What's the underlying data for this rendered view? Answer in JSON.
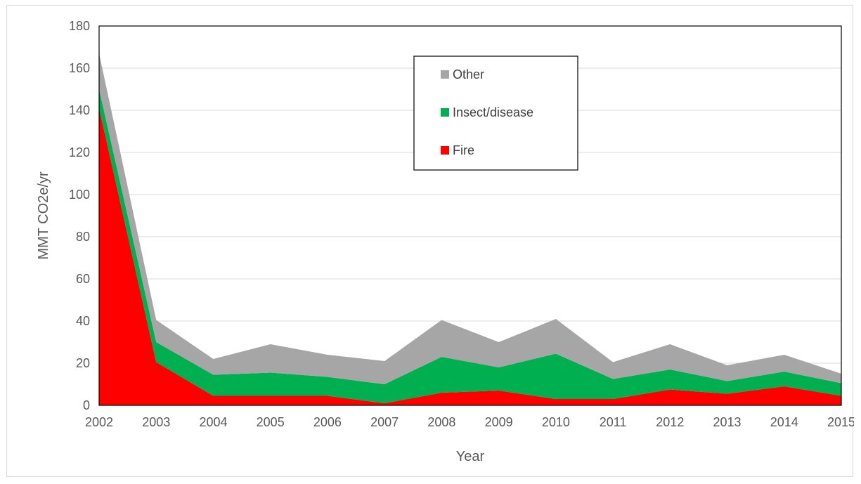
{
  "chart_data": {
    "type": "area",
    "stacked": true,
    "x": [
      2002,
      2003,
      2004,
      2005,
      2006,
      2007,
      2008,
      2009,
      2010,
      2011,
      2012,
      2013,
      2014,
      2015
    ],
    "series": [
      {
        "name": "Fire",
        "color": "#ff0000",
        "values": [
          141,
          20.5,
          4.5,
          4.5,
          4.5,
          1,
          6,
          7,
          3,
          3,
          7.5,
          5.5,
          9,
          4.5
        ]
      },
      {
        "name": "Insect/disease",
        "color": "#00b050",
        "values": [
          9,
          9.5,
          10,
          11,
          9,
          9,
          17,
          11,
          21.5,
          9.5,
          9.5,
          6,
          7,
          6
        ]
      },
      {
        "name": "Other",
        "color": "#a6a6a6",
        "values": [
          17,
          10.5,
          7.5,
          13.5,
          10.5,
          11,
          17.5,
          12,
          16.5,
          8,
          12,
          7.5,
          8,
          4.5
        ]
      }
    ],
    "xlabel": "Year",
    "ylabel": "MMT CO2e/yr",
    "ylim": [
      0,
      180
    ],
    "yticks": [
      0,
      20,
      40,
      60,
      80,
      100,
      120,
      140,
      160,
      180
    ],
    "grid": "horizontal",
    "legend_position": "top-center",
    "legend_order": [
      "Other",
      "Insect/disease",
      "Fire"
    ]
  }
}
